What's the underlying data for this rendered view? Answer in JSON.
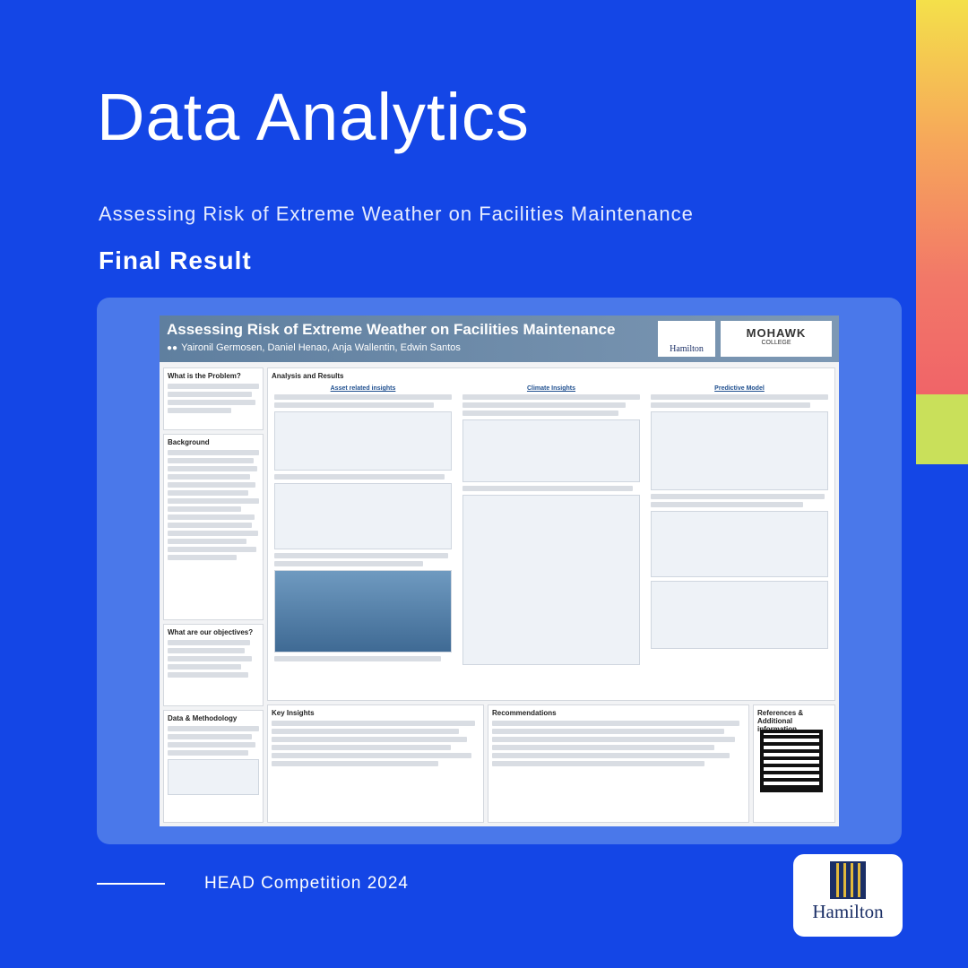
{
  "header": {
    "title": "Data Analytics",
    "subtitle": "Assessing Risk of Extreme Weather on Facilities Maintenance",
    "section": "Final Result"
  },
  "poster": {
    "title": "Assessing Risk of Extreme Weather on Facilities Maintenance",
    "authors": "Yaironil Germosen,  Daniel Henao, Anja Wallentin, Edwin Santos",
    "logo_hamilton": "Hamilton",
    "logo_mohawk": "MOHAWK",
    "logo_mohawk_sub": "COLLEGE",
    "sections": {
      "problem": "What is the Problem?",
      "background": "Background",
      "objectives": "What are our objectives?",
      "data_method": "Data & Methodology",
      "analysis": "Analysis and Results",
      "asset_insights": "Asset related insights",
      "climate_insights": "Climate Insights",
      "predictive_model": "Predictive Model",
      "key_insights": "Key Insights",
      "recommendations": "Recommendations",
      "references": "References & Additional information"
    }
  },
  "footer": {
    "competition": "HEAD Competition 2024",
    "logo_text": "Hamilton"
  },
  "colors": {
    "background": "#1446e6",
    "panel": "#4a78ea",
    "accent_gradient_top": "#f4e04a",
    "accent_gradient_bottom": "#ef5868",
    "accent_green": "#c9e05a"
  }
}
